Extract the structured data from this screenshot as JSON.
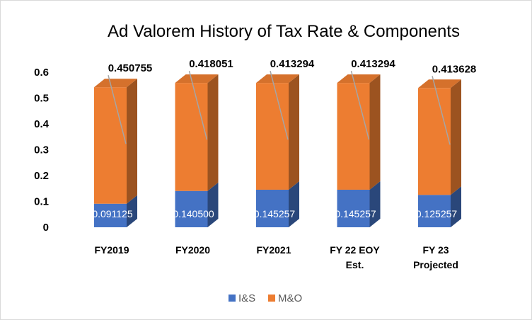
{
  "chart_data": {
    "type": "bar",
    "stacked": true,
    "three_d": true,
    "title": "Ad Valorem History of Tax Rate & Components",
    "categories": [
      "FY2019",
      "FY2020",
      "FY2021",
      "FY 22 EOY Est.",
      "FY 23 Projected"
    ],
    "category_lines": [
      [
        "FY2019"
      ],
      [
        "FY2020"
      ],
      [
        "FY2021"
      ],
      [
        "FY 22 EOY",
        "Est."
      ],
      [
        "FY 23",
        "Projected"
      ]
    ],
    "series": [
      {
        "name": "I&S",
        "values": [
          0.091125,
          0.1405,
          0.145257,
          0.145257,
          0.125257
        ],
        "labels": [
          "0.091125",
          "0.140500",
          "0.145257",
          "0.145257",
          "0.125257"
        ],
        "color": "#4472C4"
      },
      {
        "name": "M&O",
        "values": [
          0.450755,
          0.418051,
          0.413294,
          0.413294,
          0.413628
        ],
        "labels": [
          "0.450755",
          "0.418051",
          "0.413294",
          "0.413294",
          "0.413628"
        ],
        "color": "#ED7D31"
      }
    ],
    "ylim": [
      0,
      0.6
    ],
    "yticks": [
      0,
      0.1,
      0.2,
      0.3,
      0.4,
      0.5,
      0.6
    ],
    "ytick_labels": [
      "0",
      "0.1",
      "0.2",
      "0.3",
      "0.4",
      "0.5",
      "0.6"
    ],
    "xlabel": "",
    "ylabel": "",
    "grid": false,
    "legend": "bottom"
  }
}
